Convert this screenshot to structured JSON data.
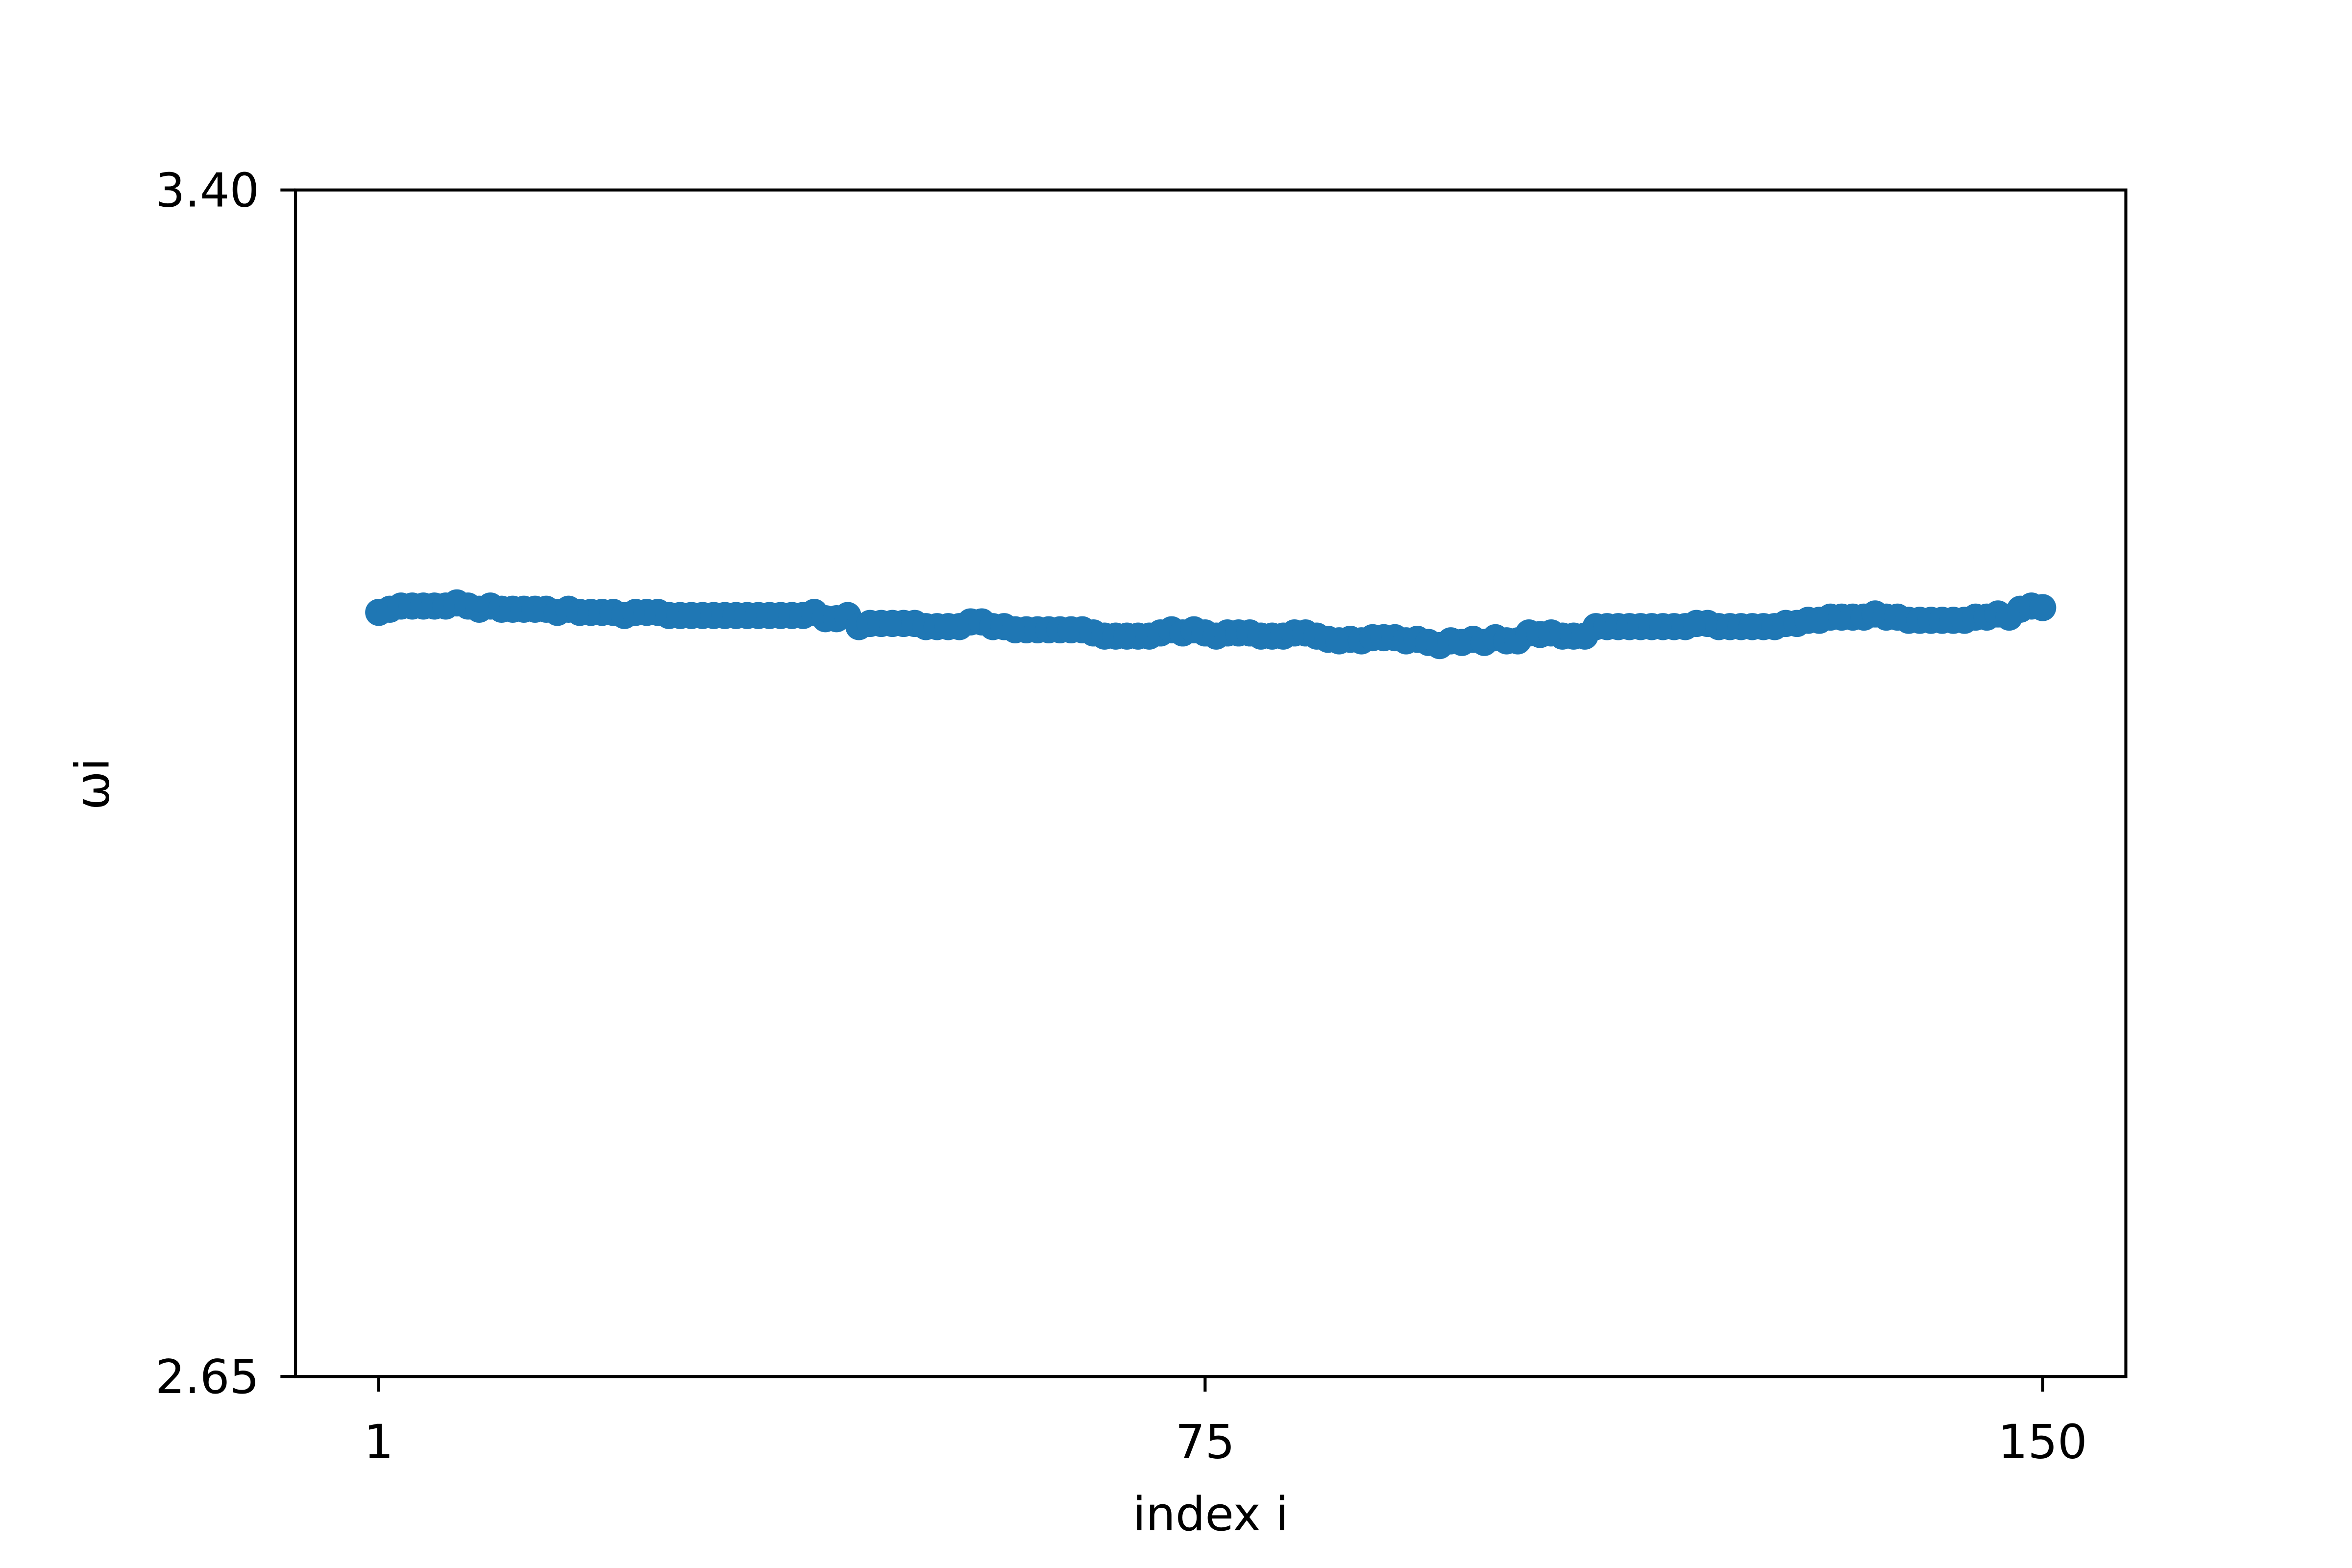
{
  "chart_data": {
    "type": "line",
    "xlabel": "index i",
    "ylabel": "ωi",
    "color": "#1f77b4",
    "markers": true,
    "x": [
      1,
      2,
      3,
      4,
      5,
      6,
      7,
      8,
      9,
      10,
      11,
      12,
      13,
      14,
      15,
      16,
      17,
      18,
      19,
      20,
      21,
      22,
      23,
      24,
      25,
      26,
      27,
      28,
      29,
      30,
      31,
      32,
      33,
      34,
      35,
      36,
      37,
      38,
      39,
      40,
      41,
      42,
      43,
      44,
      45,
      46,
      47,
      48,
      49,
      50,
      51,
      52,
      53,
      54,
      55,
      56,
      57,
      58,
      59,
      60,
      61,
      62,
      63,
      64,
      65,
      66,
      67,
      68,
      69,
      70,
      71,
      72,
      73,
      74,
      75,
      76,
      77,
      78,
      79,
      80,
      81,
      82,
      83,
      84,
      85,
      86,
      87,
      88,
      89,
      90,
      91,
      92,
      93,
      94,
      95,
      96,
      97,
      98,
      99,
      100,
      101,
      102,
      103,
      104,
      105,
      106,
      107,
      108,
      109,
      110,
      111,
      112,
      113,
      114,
      115,
      116,
      117,
      118,
      119,
      120,
      121,
      122,
      123,
      124,
      125,
      126,
      127,
      128,
      129,
      130,
      131,
      132,
      133,
      134,
      135,
      136,
      137,
      138,
      139,
      140,
      141,
      142,
      143,
      144,
      145,
      146,
      147,
      148,
      149,
      150
    ],
    "values": [
      3.133,
      3.135,
      3.137,
      3.137,
      3.137,
      3.137,
      3.137,
      3.139,
      3.137,
      3.135,
      3.137,
      3.135,
      3.135,
      3.135,
      3.135,
      3.135,
      3.133,
      3.135,
      3.133,
      3.133,
      3.133,
      3.133,
      3.131,
      3.133,
      3.133,
      3.133,
      3.131,
      3.131,
      3.131,
      3.131,
      3.131,
      3.131,
      3.131,
      3.131,
      3.131,
      3.131,
      3.131,
      3.131,
      3.131,
      3.133,
      3.129,
      3.129,
      3.131,
      3.124,
      3.126,
      3.126,
      3.126,
      3.126,
      3.126,
      3.124,
      3.124,
      3.124,
      3.124,
      3.127,
      3.127,
      3.124,
      3.124,
      3.122,
      3.122,
      3.122,
      3.122,
      3.122,
      3.122,
      3.122,
      3.12,
      3.118,
      3.118,
      3.118,
      3.118,
      3.118,
      3.12,
      3.122,
      3.12,
      3.122,
      3.12,
      3.118,
      3.12,
      3.12,
      3.12,
      3.118,
      3.118,
      3.118,
      3.12,
      3.12,
      3.118,
      3.116,
      3.115,
      3.116,
      3.115,
      3.117,
      3.117,
      3.117,
      3.115,
      3.116,
      3.114,
      3.112,
      3.115,
      3.114,
      3.116,
      3.114,
      3.117,
      3.115,
      3.115,
      3.12,
      3.119,
      3.12,
      3.118,
      3.118,
      3.118,
      3.124,
      3.124,
      3.124,
      3.124,
      3.124,
      3.124,
      3.124,
      3.124,
      3.124,
      3.126,
      3.126,
      3.124,
      3.124,
      3.124,
      3.124,
      3.124,
      3.124,
      3.126,
      3.126,
      3.128,
      3.128,
      3.13,
      3.13,
      3.13,
      3.13,
      3.132,
      3.13,
      3.13,
      3.128,
      3.128,
      3.128,
      3.128,
      3.128,
      3.128,
      3.13,
      3.13,
      3.132,
      3.13,
      3.135,
      3.137,
      3.136
    ],
    "xlim": [
      -6.45,
      157.45
    ],
    "xticks": [
      1,
      75,
      150
    ],
    "ylim": [
      2.65,
      3.4
    ],
    "yticks": [
      2.65,
      {
        "value": 3.4,
        "label": "3.40"
      }
    ]
  }
}
